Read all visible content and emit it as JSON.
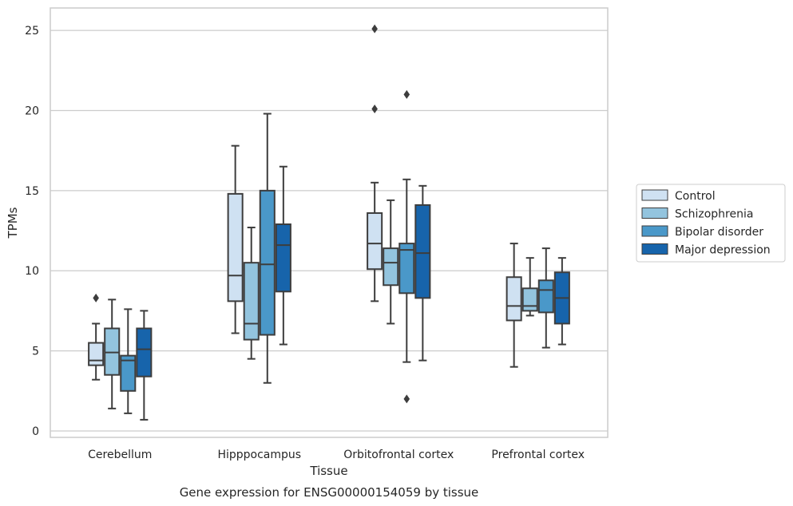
{
  "chart_data": {
    "type": "boxplot",
    "xlabel": "Tissue",
    "ylabel": "TPMs",
    "caption": "Gene expression for ENSG00000154059 by tissue",
    "ylim": [
      -0.4,
      26.4
    ],
    "yticks": [
      0,
      5,
      10,
      15,
      20,
      25
    ],
    "grid": "horizontal",
    "legend_position": "right",
    "categories": [
      "Cerebellum",
      "Hipppocampus",
      "Orbitofrontal cortex",
      "Prefrontal cortex"
    ],
    "series": [
      {
        "name": "Control",
        "color": "#cfe1f2",
        "boxes": [
          {
            "whislo": 3.2,
            "q1": 4.1,
            "med": 4.4,
            "q3": 5.5,
            "whishi": 6.7,
            "fliers": [
              8.3
            ]
          },
          {
            "whislo": 6.1,
            "q1": 8.1,
            "med": 9.7,
            "q3": 14.8,
            "whishi": 17.8,
            "fliers": []
          },
          {
            "whislo": 8.1,
            "q1": 10.1,
            "med": 11.7,
            "q3": 13.6,
            "whishi": 15.5,
            "fliers": [
              20.1,
              25.1
            ]
          },
          {
            "whislo": 4.0,
            "q1": 6.9,
            "med": 7.8,
            "q3": 9.6,
            "whishi": 11.7,
            "fliers": []
          }
        ]
      },
      {
        "name": "Schizophrenia",
        "color": "#93c4de",
        "boxes": [
          {
            "whislo": 1.4,
            "q1": 3.5,
            "med": 4.9,
            "q3": 6.4,
            "whishi": 8.2,
            "fliers": []
          },
          {
            "whislo": 4.5,
            "q1": 5.7,
            "med": 6.7,
            "q3": 10.5,
            "whishi": 12.7,
            "fliers": []
          },
          {
            "whislo": 6.7,
            "q1": 9.1,
            "med": 10.5,
            "q3": 11.4,
            "whishi": 14.4,
            "fliers": []
          },
          {
            "whislo": 7.2,
            "q1": 7.5,
            "med": 7.8,
            "q3": 8.9,
            "whishi": 10.8,
            "fliers": []
          }
        ]
      },
      {
        "name": "Bipolar disorder",
        "color": "#4a98c9",
        "boxes": [
          {
            "whislo": 1.1,
            "q1": 2.5,
            "med": 4.4,
            "q3": 4.7,
            "whishi": 7.6,
            "fliers": []
          },
          {
            "whislo": 3.0,
            "q1": 6.0,
            "med": 10.4,
            "q3": 15.0,
            "whishi": 19.8,
            "fliers": []
          },
          {
            "whislo": 4.3,
            "q1": 8.6,
            "med": 11.3,
            "q3": 11.7,
            "whishi": 15.7,
            "fliers": [
              2.0,
              21.0
            ]
          },
          {
            "whislo": 5.2,
            "q1": 7.4,
            "med": 8.8,
            "q3": 9.4,
            "whishi": 11.4,
            "fliers": []
          }
        ]
      },
      {
        "name": "Major depression",
        "color": "#1764ab",
        "boxes": [
          {
            "whislo": 0.7,
            "q1": 3.4,
            "med": 5.1,
            "q3": 6.4,
            "whishi": 7.5,
            "fliers": []
          },
          {
            "whislo": 5.4,
            "q1": 8.7,
            "med": 11.6,
            "q3": 12.9,
            "whishi": 16.5,
            "fliers": []
          },
          {
            "whislo": 4.4,
            "q1": 8.3,
            "med": 11.1,
            "q3": 14.1,
            "whishi": 15.3,
            "fliers": []
          },
          {
            "whislo": 5.4,
            "q1": 6.7,
            "med": 8.3,
            "q3": 9.9,
            "whishi": 10.8,
            "fliers": []
          }
        ]
      }
    ]
  },
  "colors": {
    "edge": "#3d3d3d",
    "grid": "#cccccc",
    "frame": "#cccccc",
    "text": "#262626"
  }
}
